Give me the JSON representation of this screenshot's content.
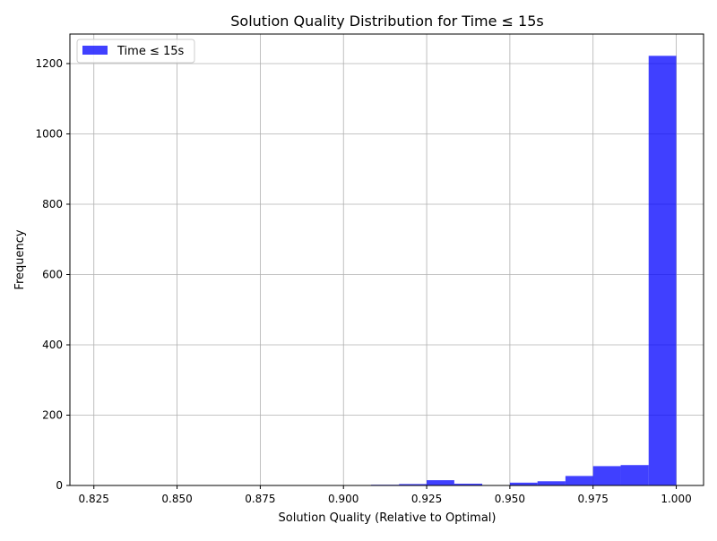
{
  "chart_data": {
    "type": "bar",
    "title": "Solution Quality Distribution for Time ≤ 15s",
    "xlabel": "Solution Quality (Relative to Optimal)",
    "ylabel": "Frequency",
    "xlim": [
      0.8178,
      1.0082
    ],
    "ylim": [
      0,
      1284
    ],
    "xticks": [
      "0.825",
      "0.850",
      "0.875",
      "0.900",
      "0.925",
      "0.950",
      "0.975",
      "1.000"
    ],
    "yticks": [
      "0",
      "200",
      "400",
      "600",
      "800",
      "1000",
      "1200"
    ],
    "grid": true,
    "legend": {
      "position": "upper-left",
      "entries": [
        "Time ≤ 15s"
      ]
    },
    "bar_color": "#0000ff",
    "bar_opacity": 0.75,
    "bins": [
      {
        "x0": 0.825,
        "x1": 0.8333,
        "value": 1
      },
      {
        "x0": 0.8333,
        "x1": 0.8417,
        "value": 0
      },
      {
        "x0": 0.8417,
        "x1": 0.85,
        "value": 1
      },
      {
        "x0": 0.85,
        "x1": 0.8583,
        "value": 1
      },
      {
        "x0": 0.8583,
        "x1": 0.8667,
        "value": 0
      },
      {
        "x0": 0.8667,
        "x1": 0.875,
        "value": 1
      },
      {
        "x0": 0.875,
        "x1": 0.8833,
        "value": 1
      },
      {
        "x0": 0.8833,
        "x1": 0.8917,
        "value": 1
      },
      {
        "x0": 0.8917,
        "x1": 0.9,
        "value": 1
      },
      {
        "x0": 0.9,
        "x1": 0.9083,
        "value": 1
      },
      {
        "x0": 0.9083,
        "x1": 0.9167,
        "value": 2
      },
      {
        "x0": 0.9167,
        "x1": 0.925,
        "value": 4
      },
      {
        "x0": 0.925,
        "x1": 0.9333,
        "value": 15
      },
      {
        "x0": 0.9333,
        "x1": 0.9417,
        "value": 5
      },
      {
        "x0": 0.9417,
        "x1": 0.95,
        "value": 0
      },
      {
        "x0": 0.95,
        "x1": 0.9583,
        "value": 8
      },
      {
        "x0": 0.9583,
        "x1": 0.9667,
        "value": 12
      },
      {
        "x0": 0.9667,
        "x1": 0.975,
        "value": 27
      },
      {
        "x0": 0.975,
        "x1": 0.9833,
        "value": 55
      },
      {
        "x0": 0.9833,
        "x1": 0.9917,
        "value": 58
      },
      {
        "x0": 0.9917,
        "x1": 1.0,
        "value": 1222
      }
    ]
  }
}
